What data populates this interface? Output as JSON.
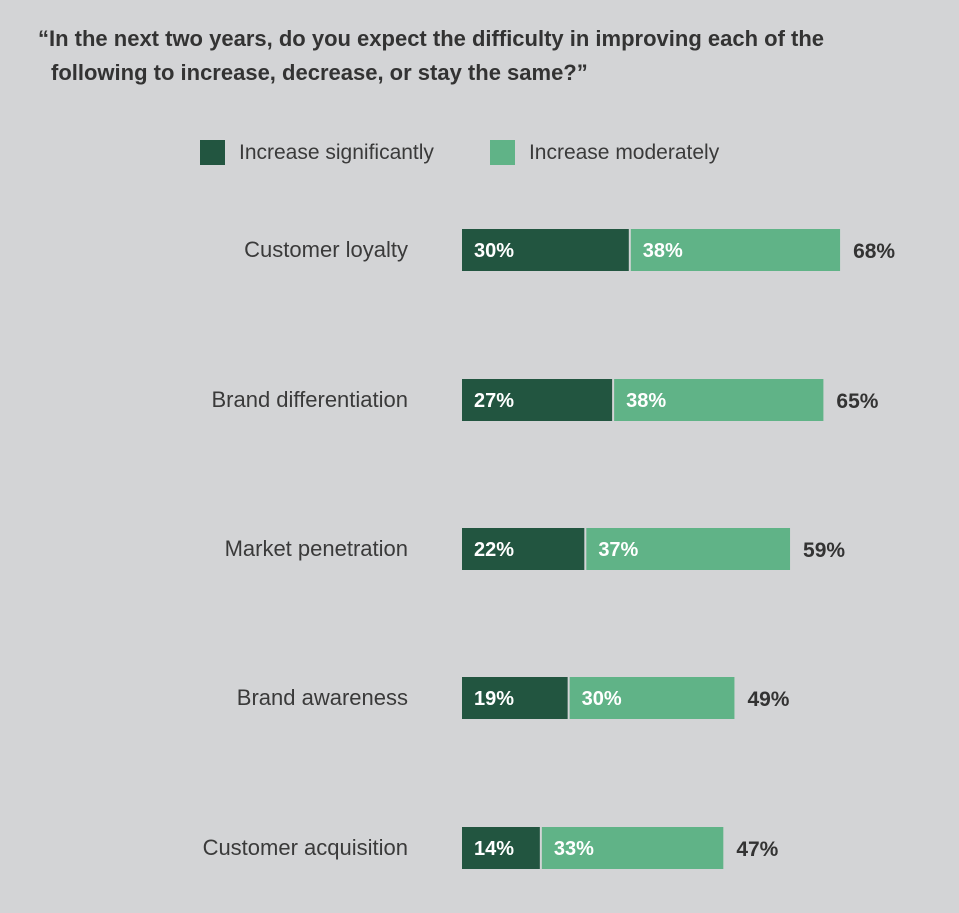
{
  "title_line1": "“In the next two years, do you expect the difficulty in improving each of the",
  "title_line2": "following to increase, decrease, or stay the same?”",
  "colors": {
    "significant": "#225540",
    "moderate": "#60b387",
    "label": "#3a3a3a",
    "total": "#333333"
  },
  "chart_data": {
    "type": "bar",
    "orientation": "horizontal",
    "stacked": true,
    "categories": [
      "Customer loyalty",
      "Brand differentiation",
      "Market penetration",
      "Brand awareness",
      "Customer acquisition"
    ],
    "series": [
      {
        "name": "Increase significantly",
        "values": [
          30,
          27,
          22,
          19,
          14
        ],
        "labels": [
          "30%",
          "27%",
          "22%",
          "19%",
          "14%"
        ]
      },
      {
        "name": "Increase moderately",
        "values": [
          38,
          38,
          37,
          30,
          33
        ],
        "labels": [
          "38%",
          "38%",
          "37%",
          "30%",
          "33%"
        ]
      }
    ],
    "totals": [
      68,
      65,
      59,
      49,
      47
    ],
    "total_labels": [
      "68%",
      "65%",
      "59%",
      "49%",
      "47%"
    ],
    "legend": "top"
  }
}
